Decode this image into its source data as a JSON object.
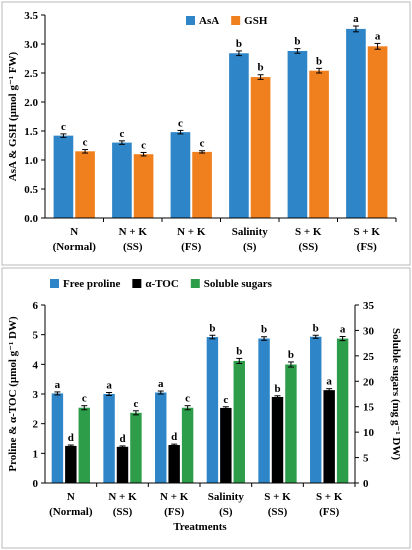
{
  "chart_data": [
    {
      "type": "bar",
      "categories": [
        [
          "N",
          "(Normal)"
        ],
        [
          "N + K",
          "(SS)"
        ],
        [
          "N + K",
          "(FS)"
        ],
        [
          "Salinity",
          "(S)"
        ],
        [
          "S + K",
          "(SS)"
        ],
        [
          "S + K",
          "(FS)"
        ]
      ],
      "ylabel": "AsA & GSH (µmol g⁻¹ FW)",
      "ylim": [
        0,
        3.5
      ],
      "yticks": [
        "0.0",
        "0.5",
        "1.0",
        "1.5",
        "2.0",
        "2.5",
        "3.0",
        "3.5"
      ],
      "legend_position": "top-left",
      "series": [
        {
          "name": "AsA",
          "color": "#2e86c8",
          "values": [
            1.42,
            1.3,
            1.48,
            2.84,
            2.88,
            3.26
          ],
          "errors": [
            0.03,
            0.03,
            0.03,
            0.04,
            0.04,
            0.05
          ],
          "labels": [
            "c",
            "c",
            "c",
            "b",
            "b",
            "a"
          ]
        },
        {
          "name": "GSH",
          "color": "#f07f1e",
          "values": [
            1.15,
            1.1,
            1.14,
            2.43,
            2.54,
            2.96
          ],
          "errors": [
            0.03,
            0.03,
            0.02,
            0.04,
            0.04,
            0.05
          ],
          "labels": [
            "c",
            "c",
            "c",
            "b",
            "b",
            "a"
          ]
        }
      ]
    },
    {
      "type": "bar",
      "categories": [
        [
          "N",
          "(Normal)"
        ],
        [
          "N + K",
          "(SS)"
        ],
        [
          "N + K",
          "(FS)"
        ],
        [
          "Salinity",
          "(S)"
        ],
        [
          "S + K",
          "(SS)"
        ],
        [
          "S + K",
          "(FS)"
        ]
      ],
      "xlabel": "Treatments",
      "ylabel": "Proline & α-TOC (µmol g⁻¹ DW)",
      "ylim": [
        0,
        6
      ],
      "yticks": [
        "0",
        "1",
        "2",
        "3",
        "4",
        "5",
        "6"
      ],
      "y2label": "Soluble sugars (mg g⁻¹ DW)",
      "y2lim": [
        0,
        35
      ],
      "y2ticks": [
        "0",
        "5",
        "10",
        "15",
        "20",
        "25",
        "30",
        "35"
      ],
      "legend_position": "top",
      "series": [
        {
          "name": "Free proline",
          "color": "#2e86c8",
          "axis": "left",
          "values": [
            3.02,
            3.0,
            3.05,
            4.92,
            4.87,
            4.93
          ],
          "errors": [
            0.05,
            0.05,
            0.05,
            0.06,
            0.06,
            0.05
          ],
          "labels": [
            "a",
            "a",
            "a",
            "b",
            "b",
            "b"
          ]
        },
        {
          "name": "α-TOC",
          "color": "#000000",
          "axis": "left",
          "values": [
            1.25,
            1.22,
            1.28,
            2.53,
            2.9,
            3.13
          ],
          "errors": [
            0.03,
            0.03,
            0.03,
            0.04,
            0.04,
            0.05
          ],
          "labels": [
            "d",
            "d",
            "d",
            "c",
            "b",
            "a"
          ]
        },
        {
          "name": "Soluble sugars",
          "color": "#2e9d4a",
          "axis": "right",
          "values": [
            14.8,
            13.8,
            14.8,
            24.0,
            23.3,
            28.4
          ],
          "errors": [
            0.4,
            0.4,
            0.4,
            0.5,
            0.5,
            0.4
          ],
          "labels": [
            "c",
            "c",
            "c",
            "b",
            "b",
            "a"
          ]
        }
      ]
    }
  ]
}
